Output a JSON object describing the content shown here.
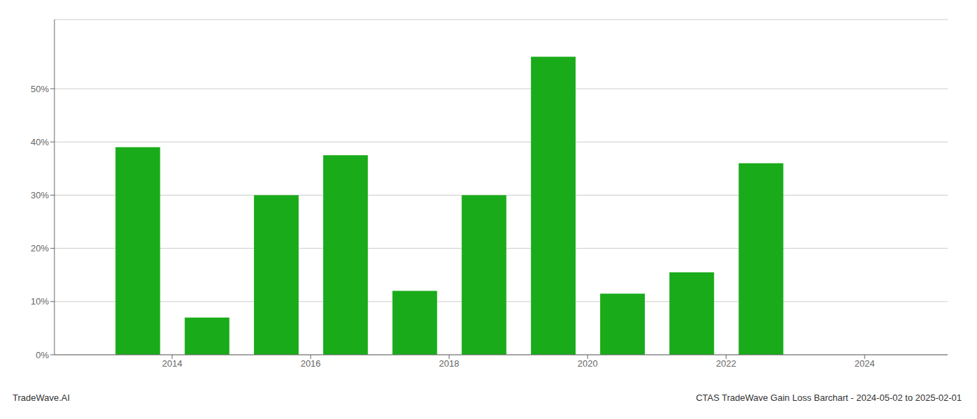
{
  "chart_data": {
    "type": "bar",
    "x": [
      2013.5,
      2014.5,
      2015.5,
      2016.5,
      2017.5,
      2018.5,
      2019.5,
      2020.5,
      2021.5,
      2022.5,
      2023.5
    ],
    "values": [
      0.39,
      0.07,
      0.3,
      0.375,
      0.12,
      0.3,
      0.56,
      0.115,
      0.155,
      0.36,
      0.0
    ],
    "color": "#1aab1a",
    "xlim": [
      2012.3,
      2025.2
    ],
    "ylim": [
      0,
      0.63
    ],
    "xticks": [
      2014,
      2016,
      2018,
      2020,
      2022,
      2024
    ],
    "yticks": [
      {
        "value": 0.0,
        "label": "0%"
      },
      {
        "value": 0.1,
        "label": "10%"
      },
      {
        "value": 0.2,
        "label": "20%"
      },
      {
        "value": 0.3,
        "label": "30%"
      },
      {
        "value": 0.4,
        "label": "40%"
      },
      {
        "value": 0.5,
        "label": "50%"
      }
    ],
    "grid": true,
    "annotations": [
      "TradeWave.AI",
      "CTAS TradeWave Gain Loss Barchart - 2024-05-02 to 2025-02-01"
    ]
  }
}
